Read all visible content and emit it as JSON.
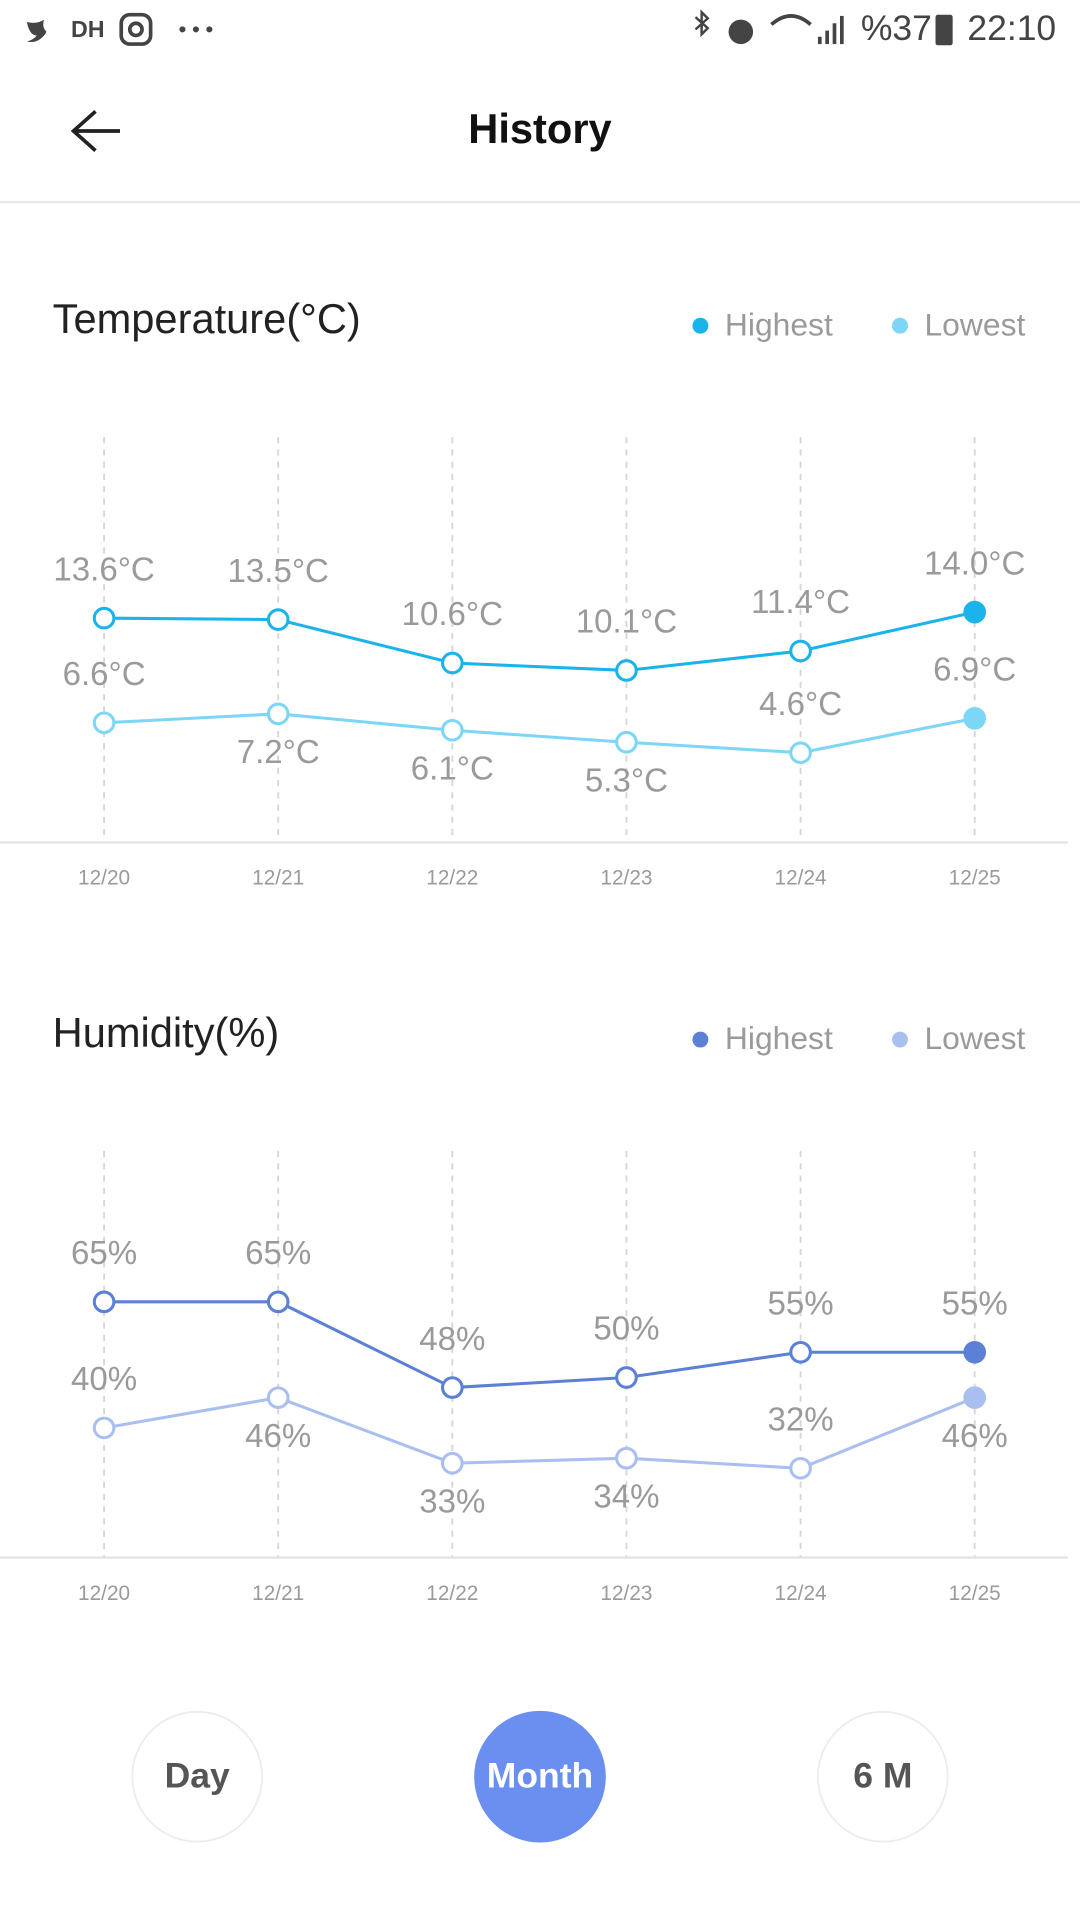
{
  "status_bar": {
    "carrier": "DH",
    "battery": "%37",
    "time": "22:10"
  },
  "header": {
    "title": "History"
  },
  "chart_data": [
    {
      "type": "line",
      "title": "Temperature(°C)",
      "categories": [
        "12/20",
        "12/21",
        "12/22",
        "12/23",
        "12/24",
        "12/25"
      ],
      "series": [
        {
          "name": "Highest",
          "color": "#1ab3ea",
          "values": [
            13.6,
            13.5,
            10.6,
            10.1,
            11.4,
            14.0
          ],
          "value_labels": [
            "13.6°C",
            "13.5°C",
            "10.6°C",
            "10.1°C",
            "11.4°C",
            "14.0°C"
          ]
        },
        {
          "name": "Lowest",
          "color": "#7dd6f5",
          "values": [
            6.6,
            7.2,
            6.1,
            5.3,
            4.6,
            6.9
          ],
          "value_labels": [
            "6.6°C",
            "7.2°C",
            "6.1°C",
            "5.3°C",
            "4.6°C",
            "6.9°C"
          ]
        }
      ],
      "ylim": [
        -1.4,
        25.7
      ],
      "legend": "top-right"
    },
    {
      "type": "line",
      "title": "Humidity(%)",
      "categories": [
        "12/20",
        "12/21",
        "12/22",
        "12/23",
        "12/24",
        "12/25"
      ],
      "series": [
        {
          "name": "Highest",
          "color": "#5b80d6",
          "values": [
            65,
            65,
            48,
            50,
            55,
            55
          ],
          "value_labels": [
            "65%",
            "65%",
            "48%",
            "50%",
            "55%",
            "55%"
          ]
        },
        {
          "name": "Lowest",
          "color": "#a9bff0",
          "values": [
            40,
            46,
            33,
            34,
            32,
            46
          ],
          "value_labels": [
            "40%",
            "46%",
            "33%",
            "34%",
            "32%",
            "46%"
          ]
        }
      ],
      "ylim": [
        14.3,
        94.9
      ],
      "legend": "top-right"
    }
  ],
  "tabs": [
    "Day",
    "Month",
    "6 M"
  ]
}
